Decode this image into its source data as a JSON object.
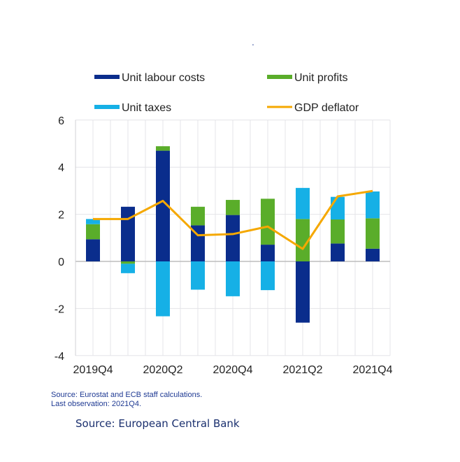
{
  "chart_data": {
    "type": "bar",
    "stacked": true,
    "title": "",
    "xlabel": "",
    "ylabel": "",
    "categories": [
      "2019Q4",
      "2020Q1",
      "2020Q2",
      "2020Q3",
      "2020Q4",
      "2021Q1",
      "2021Q2",
      "2021Q3",
      "2021Q4"
    ],
    "tick_labels_x": [
      "2019Q4",
      "2020Q2",
      "2020Q4",
      "2021Q2",
      "2021Q4"
    ],
    "ylim": [
      -4,
      6
    ],
    "yticks": [
      -4,
      -2,
      0,
      2,
      4,
      6
    ],
    "grid": true,
    "legend_position": "top",
    "series": [
      {
        "name": "Unit labour costs",
        "kind": "bar",
        "color": "#0a2d8c",
        "values": [
          0.94,
          2.32,
          4.7,
          1.53,
          1.97,
          0.71,
          -2.6,
          0.76,
          0.54
        ]
      },
      {
        "name": "Unit profits",
        "kind": "bar",
        "color": "#5aad2a",
        "values": [
          0.64,
          -0.1,
          0.19,
          0.79,
          0.64,
          1.95,
          1.8,
          1.02,
          1.29
        ]
      },
      {
        "name": "Unit taxes",
        "kind": "bar",
        "color": "#16b0e6",
        "values": [
          0.22,
          -0.4,
          -2.33,
          -1.2,
          -1.48,
          -1.22,
          1.32,
          0.96,
          1.14
        ]
      },
      {
        "name": "GDP deflator",
        "kind": "line",
        "color": "#f5a800",
        "values": [
          1.8,
          1.8,
          2.57,
          1.11,
          1.16,
          1.48,
          0.53,
          2.76,
          2.99
        ]
      }
    ]
  },
  "notes": {
    "source_line": "Source: Eurostat and ECB staff calculations.",
    "last_observation": "Last observation: 2021Q4.",
    "attribution": "Source: European Central Bank",
    "stray_mark": "'"
  }
}
